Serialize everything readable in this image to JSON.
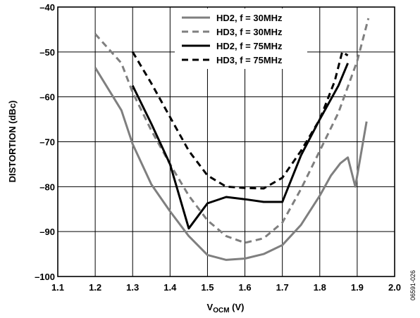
{
  "chart_data": {
    "type": "line",
    "title": "",
    "xlabel": "V",
    "xlabel_sub": "OCM",
    "xlabel_unit": " (V)",
    "ylabel": "DISTORTION (dBc)",
    "xlim": [
      1.1,
      2.0
    ],
    "ylim": [
      -100,
      -40
    ],
    "x_ticks": [
      "1.1",
      "1.2",
      "1.3",
      "1.4",
      "1.5",
      "1.6",
      "1.7",
      "1.8",
      "1.9",
      "2.0"
    ],
    "y_ticks": [
      "–40",
      "–50",
      "–60",
      "–70",
      "–80",
      "–90",
      "–100"
    ],
    "grid": true,
    "legend_position": "top-right",
    "figure_code": "06591-026",
    "series": [
      {
        "name": "HD2, f = 30MHz",
        "color": "#7f7f7f",
        "dash": "solid",
        "points": [
          [
            1.2,
            -53.5
          ],
          [
            1.27,
            -63
          ],
          [
            1.3,
            -70.5
          ],
          [
            1.35,
            -79.5
          ],
          [
            1.4,
            -85.5
          ],
          [
            1.45,
            -91
          ],
          [
            1.5,
            -95.2
          ],
          [
            1.55,
            -96.3
          ],
          [
            1.6,
            -96
          ],
          [
            1.65,
            -95
          ],
          [
            1.7,
            -93
          ],
          [
            1.75,
            -88.5
          ],
          [
            1.8,
            -82
          ],
          [
            1.83,
            -77.5
          ],
          [
            1.855,
            -74.8
          ],
          [
            1.875,
            -73.5
          ],
          [
            1.895,
            -80
          ],
          [
            1.925,
            -65.5
          ]
        ]
      },
      {
        "name": "HD3, f = 30MHz",
        "color": "#7f7f7f",
        "dash": "dashed",
        "points": [
          [
            1.2,
            -46
          ],
          [
            1.27,
            -52.5
          ],
          [
            1.3,
            -59
          ],
          [
            1.35,
            -67.5
          ],
          [
            1.4,
            -75
          ],
          [
            1.45,
            -82
          ],
          [
            1.5,
            -87.5
          ],
          [
            1.55,
            -91
          ],
          [
            1.6,
            -92.5
          ],
          [
            1.65,
            -91.5
          ],
          [
            1.7,
            -88
          ],
          [
            1.75,
            -80.5
          ],
          [
            1.8,
            -72
          ],
          [
            1.85,
            -63.5
          ],
          [
            1.9,
            -52
          ],
          [
            1.93,
            -42.5
          ]
        ]
      },
      {
        "name": "HD2, f = 75MHz",
        "color": "#000000",
        "dash": "solid",
        "points": [
          [
            1.3,
            -57.5
          ],
          [
            1.35,
            -66
          ],
          [
            1.4,
            -75
          ],
          [
            1.45,
            -89.3
          ],
          [
            1.5,
            -83.7
          ],
          [
            1.55,
            -82.3
          ],
          [
            1.6,
            -82.8
          ],
          [
            1.65,
            -83.4
          ],
          [
            1.7,
            -83.4
          ],
          [
            1.75,
            -73
          ],
          [
            1.8,
            -65
          ],
          [
            1.85,
            -57.5
          ],
          [
            1.875,
            -52.5
          ]
        ]
      },
      {
        "name": "HD3, f = 75MHz",
        "color": "#000000",
        "dash": "dashed",
        "points": [
          [
            1.3,
            -50
          ],
          [
            1.35,
            -57
          ],
          [
            1.4,
            -64.5
          ],
          [
            1.45,
            -72
          ],
          [
            1.5,
            -77.5
          ],
          [
            1.55,
            -80
          ],
          [
            1.6,
            -80.3
          ],
          [
            1.65,
            -80.4
          ],
          [
            1.7,
            -78
          ],
          [
            1.75,
            -72
          ],
          [
            1.8,
            -65
          ],
          [
            1.84,
            -56.5
          ],
          [
            1.86,
            -50
          ],
          [
            1.875,
            -50.8
          ]
        ]
      }
    ]
  }
}
